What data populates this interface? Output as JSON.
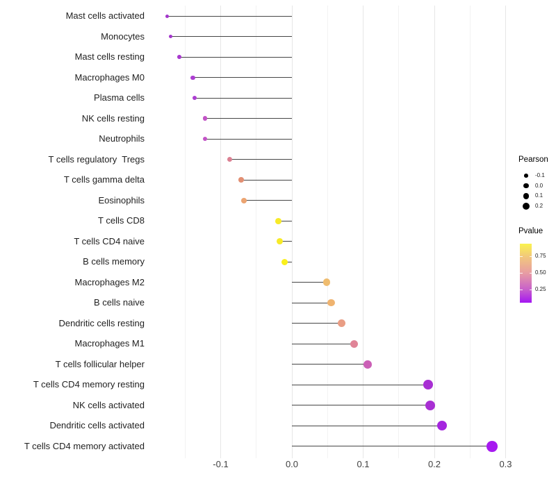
{
  "chart_data": {
    "type": "scatter",
    "variant": "lollipop",
    "title": "",
    "xlabel": "",
    "ylabel": "",
    "grid": "vertical-only",
    "xlim": [
      -0.198,
      0.305
    ],
    "x_ticks": [
      {
        "label": "-0.1",
        "value": -0.1
      },
      {
        "label": "0.0",
        "value": 0.0
      },
      {
        "label": "0.1",
        "value": 0.1
      },
      {
        "label": "0.2",
        "value": 0.2
      },
      {
        "label": "0.3",
        "value": 0.3
      }
    ],
    "x_minor_ticks": [
      -0.15,
      -0.05,
      0.05,
      0.15,
      0.25
    ],
    "items": [
      {
        "label": "Mast cells activated",
        "pearson": -0.175,
        "color": "#a335cb"
      },
      {
        "label": "Monocytes",
        "pearson": -0.17,
        "color": "#a335cb"
      },
      {
        "label": "Mast cells resting",
        "pearson": -0.158,
        "color": "#a838ce"
      },
      {
        "label": "Macrophages M0",
        "pearson": -0.139,
        "color": "#ac3ed1"
      },
      {
        "label": "Plasma cells",
        "pearson": -0.137,
        "color": "#ac3ed1"
      },
      {
        "label": "NK cells resting",
        "pearson": -0.122,
        "color": "#c253c6"
      },
      {
        "label": "Neutrophils",
        "pearson": -0.122,
        "color": "#c253c6"
      },
      {
        "label": "T cells regulatory  Tregs",
        "pearson": -0.087,
        "color": "#db8193"
      },
      {
        "label": "T cells gamma delta",
        "pearson": -0.071,
        "color": "#e28f73"
      },
      {
        "label": "Eosinophils",
        "pearson": -0.067,
        "color": "#eca471"
      },
      {
        "label": "T cells CD8",
        "pearson": -0.019,
        "color": "#f7ea28"
      },
      {
        "label": "T cells CD4 naive",
        "pearson": -0.017,
        "color": "#f7ea28"
      },
      {
        "label": "B cells memory",
        "pearson": -0.01,
        "color": "#faf01c"
      },
      {
        "label": "Macrophages M2",
        "pearson": 0.049,
        "color": "#efbc6f"
      },
      {
        "label": "B cells naive",
        "pearson": 0.055,
        "color": "#efb36f"
      },
      {
        "label": "Dendritic cells resting",
        "pearson": 0.07,
        "color": "#e99d84"
      },
      {
        "label": "Macrophages M1",
        "pearson": 0.087,
        "color": "#e08497"
      },
      {
        "label": "T cells follicular helper",
        "pearson": 0.106,
        "color": "#cb5fb6"
      },
      {
        "label": "T cells CD4 memory resting",
        "pearson": 0.191,
        "color": "#a82fd3"
      },
      {
        "label": "NK cells activated",
        "pearson": 0.194,
        "color": "#a82fd3"
      },
      {
        "label": "Dendritic cells activated",
        "pearson": 0.211,
        "color": "#a526df"
      },
      {
        "label": "T cells CD4 memory activated",
        "pearson": 0.281,
        "color": "#a71af0"
      }
    ]
  },
  "legend": {
    "pearson": {
      "title": "Pearson",
      "entries": [
        {
          "label": "-0.1",
          "value": -0.1
        },
        {
          "label": "0.0",
          "value": 0.0
        },
        {
          "label": "0.1",
          "value": 0.1
        },
        {
          "label": "0.2",
          "value": 0.2
        }
      ]
    },
    "pvalue": {
      "title": "Pvalue",
      "ticks": [
        {
          "label": "0.75",
          "frac_from_bottom": 0.79
        },
        {
          "label": "0.50",
          "frac_from_bottom": 0.505
        },
        {
          "label": "0.25",
          "frac_from_bottom": 0.22
        }
      ],
      "gradient_bottom_to_top": [
        "#a416f2",
        "#c75fcb",
        "#e89ca3",
        "#f2c97b",
        "#faf34e"
      ]
    }
  }
}
